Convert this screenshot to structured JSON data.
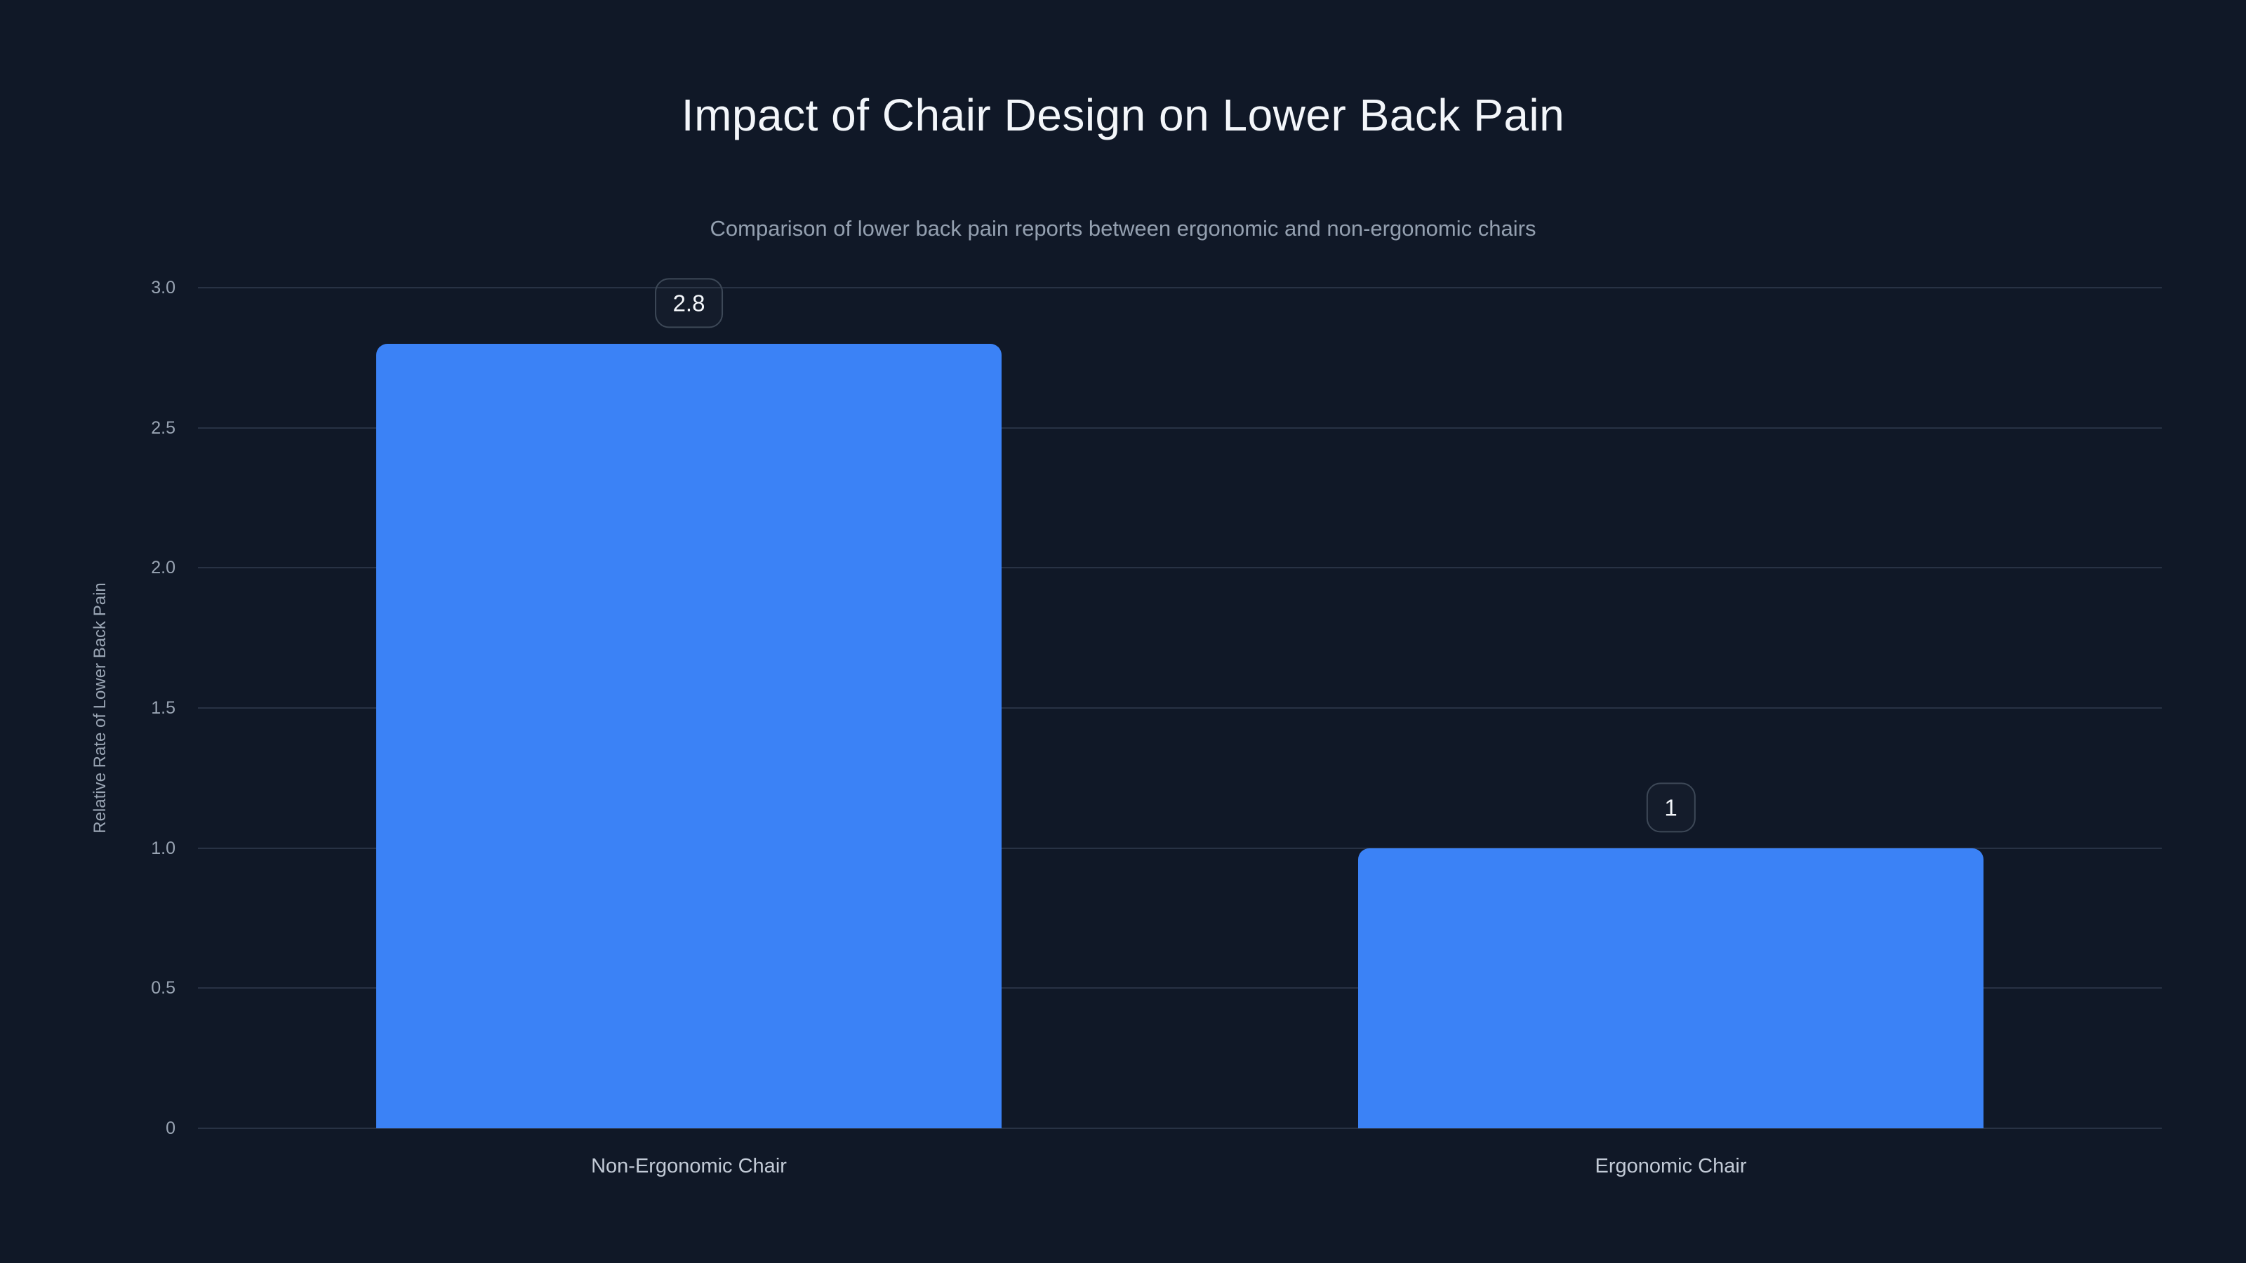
{
  "page": {
    "background_color": "#101827"
  },
  "chart_data": {
    "type": "bar",
    "title": "Impact of Chair Design on Lower Back Pain",
    "subtitle": "Comparison of lower back pain reports between ergonomic and non-ergonomic chairs",
    "categories": [
      "Non-Ergonomic Chair",
      "Ergonomic Chair"
    ],
    "values": [
      2.8,
      1
    ],
    "value_labels": [
      "2.8",
      "1"
    ],
    "xlabel": "",
    "ylabel": "Relative Rate of Lower Back Pain",
    "ylim": [
      0,
      3
    ],
    "yticks": [
      0,
      0.5,
      1,
      1.5,
      2,
      2.5,
      3
    ],
    "ytick_labels": [
      "0",
      "0.5",
      "1.0",
      "1.5",
      "2.0",
      "2.5",
      "3.0"
    ],
    "grid": true,
    "legend": false,
    "bar_color": "#3b82f6",
    "colors": {
      "background": "#101827",
      "bar": "#3b82f6",
      "gridline": "#283244",
      "title": "#f3f6fa",
      "subtitle": "#94a0b0",
      "tick_label": "#9aa5b4",
      "axis_label": "#9aa5b4",
      "category_label": "#c2cad6",
      "value_label_text": "#f3f6fa",
      "value_label_border": "#3d4857"
    }
  }
}
